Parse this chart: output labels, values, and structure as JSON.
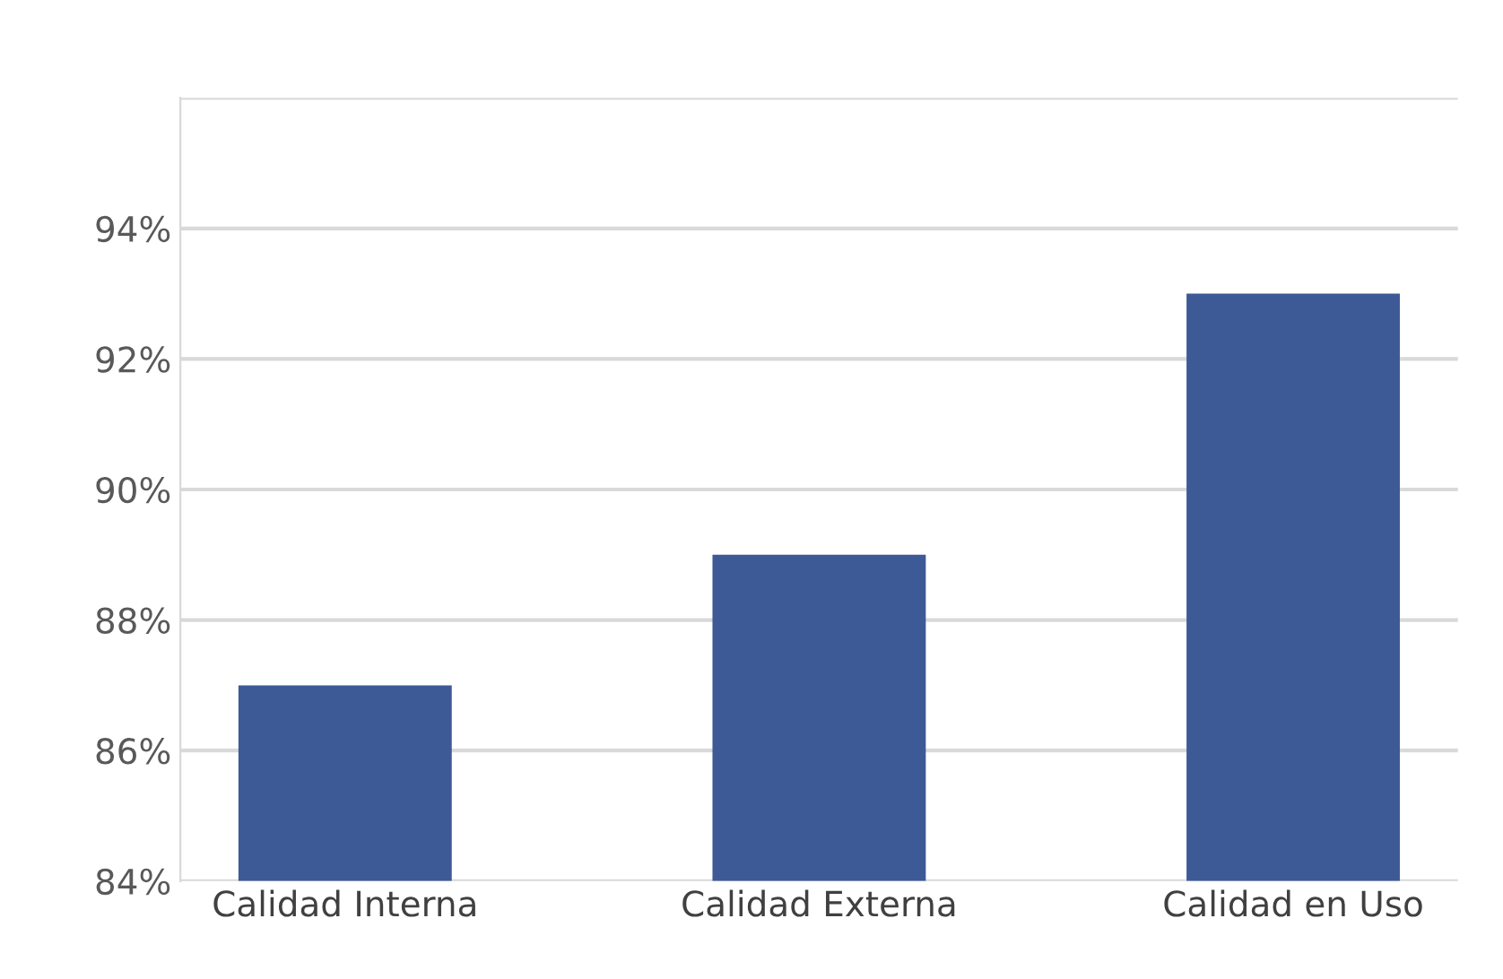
{
  "chart_data": {
    "type": "bar",
    "categories": [
      "Calidad Interna",
      "Calidad Externa",
      "Calidad en Uso"
    ],
    "values": [
      87,
      89,
      93
    ],
    "color": "#3d5a96",
    "ylim": [
      84,
      96
    ],
    "yticks": [
      {
        "value": 84,
        "label": "84%"
      },
      {
        "value": 86,
        "label": "86%"
      },
      {
        "value": 88,
        "label": "88%"
      },
      {
        "value": 90,
        "label": "90%"
      },
      {
        "value": 92,
        "label": "92%"
      },
      {
        "value": 94,
        "label": "94%"
      },
      {
        "value": 96,
        "label": null
      }
    ],
    "grid": "y"
  }
}
